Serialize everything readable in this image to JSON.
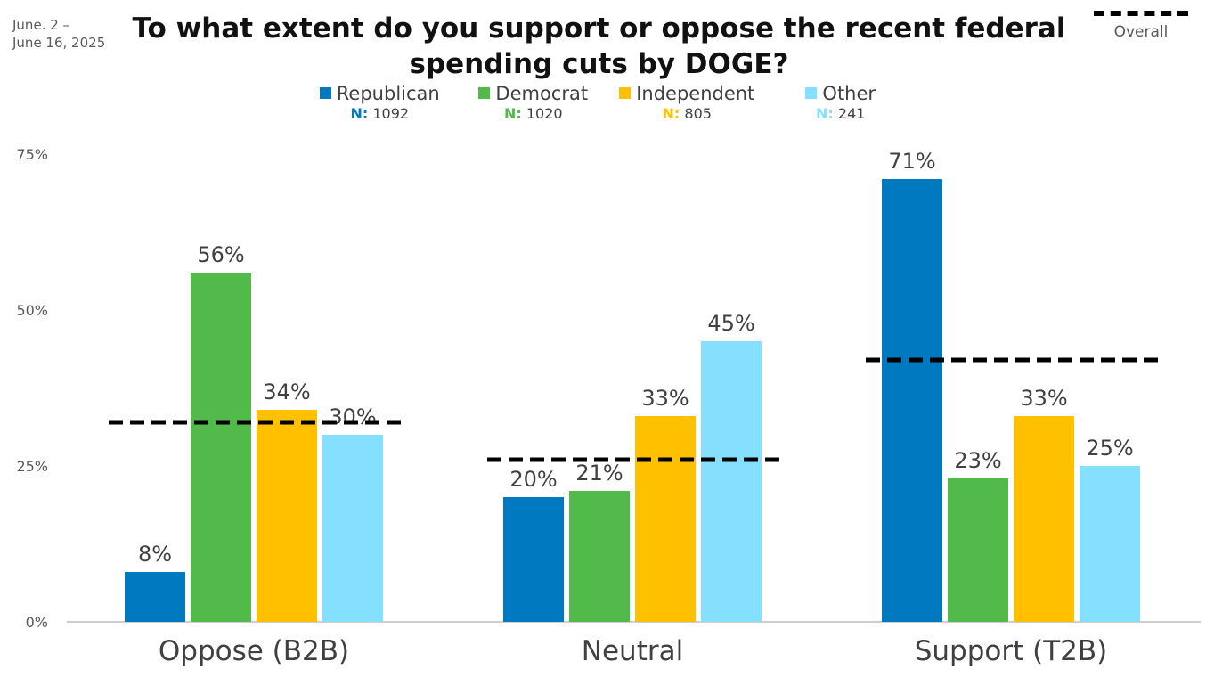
{
  "date_range": [
    "June. 2 –",
    "June 16, 2025"
  ],
  "overall_label": "Overall",
  "chart_data": {
    "type": "bar",
    "title": "To what extent do you support or oppose the recent federal spending cuts by DOGE?",
    "categories": [
      "Oppose (B2B)",
      "Neutral",
      "Support (T2B)"
    ],
    "series": [
      {
        "name": "Republican",
        "n_label": "N:",
        "n_value": "1092",
        "color": "#0079C1",
        "values": [
          8,
          20,
          71
        ],
        "labels": [
          "8%",
          "20%",
          "71%"
        ]
      },
      {
        "name": "Democrat",
        "n_label": "N:",
        "n_value": "1020",
        "color": "#52BA4A",
        "values": [
          56,
          21,
          23
        ],
        "labels": [
          "56%",
          "21%",
          "23%"
        ]
      },
      {
        "name": "Independent",
        "n_label": "N:",
        "n_value": "805",
        "color": "#FFC000",
        "values": [
          34,
          33,
          33
        ],
        "labels": [
          "34%",
          "33%",
          "33%"
        ]
      },
      {
        "name": "Other",
        "n_label": "N:",
        "n_value": "241",
        "color": "#85DFFF",
        "values": [
          30,
          45,
          25
        ],
        "labels": [
          "30%",
          "45%",
          "25%"
        ]
      }
    ],
    "overall": {
      "name": "Overall",
      "values": [
        32,
        26,
        42
      ]
    },
    "ylim": [
      0,
      75
    ],
    "yticks": [
      0,
      25,
      50,
      75
    ],
    "ytick_labels": [
      "0%",
      "25%",
      "50%",
      "75%"
    ],
    "grid": false,
    "legend_position": "top"
  }
}
